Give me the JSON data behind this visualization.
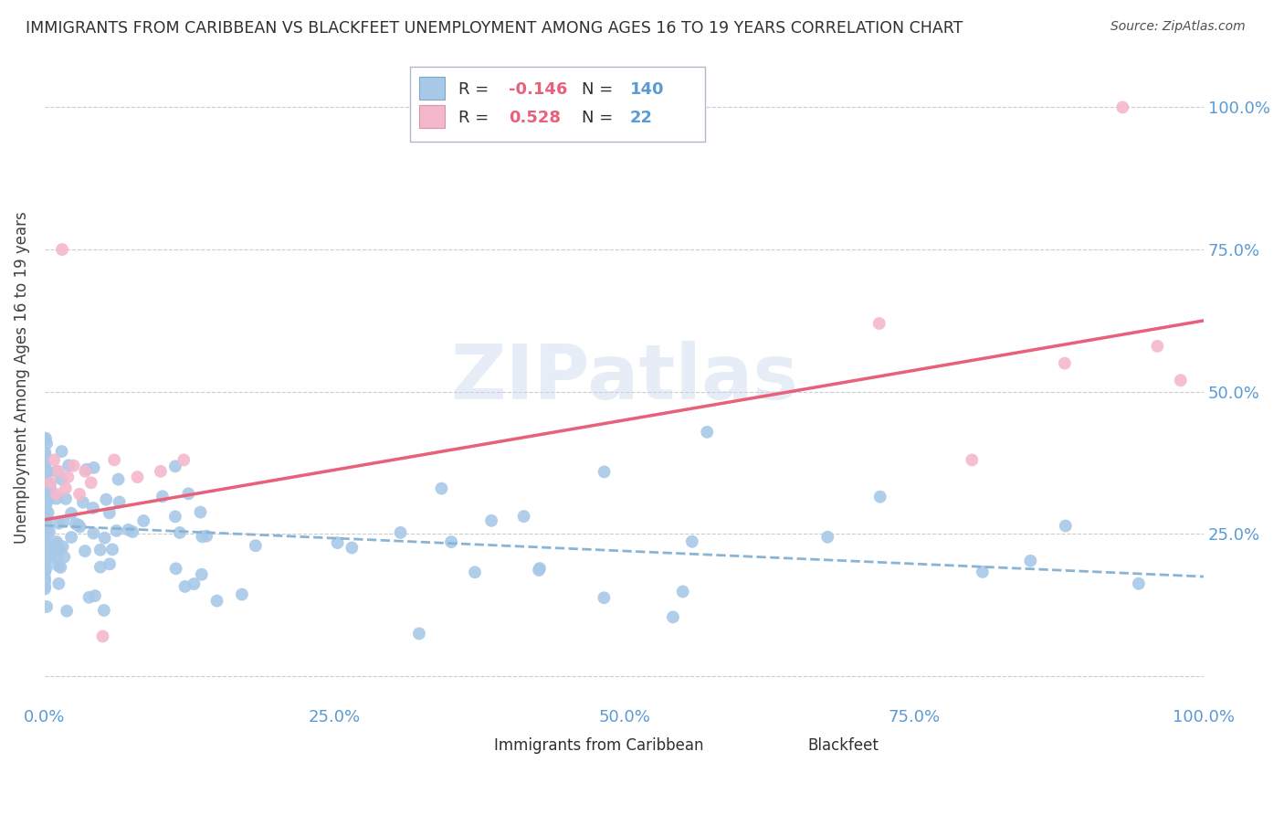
{
  "title": "IMMIGRANTS FROM CARIBBEAN VS BLACKFEET UNEMPLOYMENT AMONG AGES 16 TO 19 YEARS CORRELATION CHART",
  "source": "Source: ZipAtlas.com",
  "ylabel": "Unemployment Among Ages 16 to 19 years",
  "xlim": [
    0.0,
    1.0
  ],
  "ylim": [
    -0.05,
    1.1
  ],
  "ytick_labels": [
    "",
    "25.0%",
    "50.0%",
    "75.0%",
    "100.0%"
  ],
  "xtick_labels": [
    "0.0%",
    "25.0%",
    "50.0%",
    "75.0%",
    "100.0%"
  ],
  "blue_R": -0.146,
  "blue_N": 140,
  "pink_R": 0.528,
  "pink_N": 22,
  "blue_color": "#a8c8e8",
  "pink_color": "#f4b8cc",
  "blue_line_color": "#8ab4d4",
  "pink_line_color": "#e8607a",
  "axis_color": "#5b9bd5",
  "watermark": "ZIPatlas",
  "blue_trend_x": [
    0.0,
    1.0
  ],
  "blue_trend_y": [
    0.265,
    0.175
  ],
  "pink_trend_x": [
    0.0,
    1.0
  ],
  "pink_trend_y": [
    0.275,
    0.625
  ]
}
